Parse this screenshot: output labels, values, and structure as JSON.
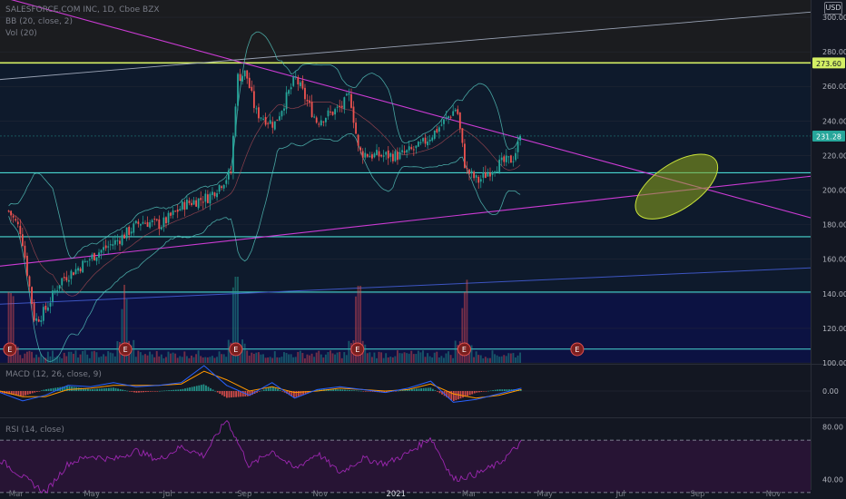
{
  "header": {
    "title": "SALESFORCE.COM INC, 1D, Cboe BZX",
    "bb_label": "BB (20, close, 2)",
    "vol_label": "Vol (20)",
    "currency": "USD"
  },
  "panes": {
    "macd_label": "MACD (12, 26, close, 9)",
    "rsi_label": "RSI (14, close)"
  },
  "price_labels": {
    "resistance": "273.60",
    "last": "231.28"
  },
  "colors": {
    "background": "#131722",
    "up": "#26a69a",
    "down": "#ef5350",
    "trendline": "#cc3bd4",
    "support": "#48d6d0",
    "resistance": "#d4ef64",
    "ellipse": "#8fa81c",
    "macd": "#2962ff",
    "signal": "#ff9800",
    "rsi": "#9c27b0"
  },
  "chart_data": [
    {
      "type": "candlestick",
      "title": "SALESFORCE.COM INC, 1D, Cboe BZX",
      "ylim": [
        100,
        310
      ],
      "yticks": [
        100,
        120,
        140,
        160,
        180,
        200,
        220,
        240,
        260,
        280,
        300
      ],
      "xticks": [
        "Mar",
        "May",
        "Jul",
        "Sep",
        "Nov",
        "2021",
        "Mar",
        "May",
        "Jul",
        "Sep",
        "Nov"
      ],
      "close_path": [
        {
          "x": "2020-02-24",
          "y": 188
        },
        {
          "x": "2020-03-05",
          "y": 176
        },
        {
          "x": "2020-03-16",
          "y": 124
        },
        {
          "x": "2020-03-24",
          "y": 130
        },
        {
          "x": "2020-04-06",
          "y": 148
        },
        {
          "x": "2020-04-20",
          "y": 155
        },
        {
          "x": "2020-05-06",
          "y": 164
        },
        {
          "x": "2020-05-20",
          "y": 170
        },
        {
          "x": "2020-06-10",
          "y": 182
        },
        {
          "x": "2020-06-26",
          "y": 180
        },
        {
          "x": "2020-07-15",
          "y": 192
        },
        {
          "x": "2020-08-03",
          "y": 196
        },
        {
          "x": "2020-08-21",
          "y": 210
        },
        {
          "x": "2020-08-26",
          "y": 265
        },
        {
          "x": "2020-09-02",
          "y": 268
        },
        {
          "x": "2020-09-10",
          "y": 245
        },
        {
          "x": "2020-09-25",
          "y": 238
        },
        {
          "x": "2020-10-12",
          "y": 265
        },
        {
          "x": "2020-10-29",
          "y": 240
        },
        {
          "x": "2020-11-18",
          "y": 248
        },
        {
          "x": "2020-11-25",
          "y": 255
        },
        {
          "x": "2020-12-02",
          "y": 222
        },
        {
          "x": "2020-12-14",
          "y": 220
        },
        {
          "x": "2021-01-04",
          "y": 220
        },
        {
          "x": "2021-01-20",
          "y": 225
        },
        {
          "x": "2021-02-03",
          "y": 235
        },
        {
          "x": "2021-02-19",
          "y": 248
        },
        {
          "x": "2021-02-26",
          "y": 212
        },
        {
          "x": "2021-03-08",
          "y": 205
        },
        {
          "x": "2021-03-22",
          "y": 214
        },
        {
          "x": "2021-04-05",
          "y": 218
        },
        {
          "x": "2021-04-12",
          "y": 231.28
        }
      ],
      "earnings_markers": [
        "2020-02-25",
        "2020-05-28",
        "2020-08-25",
        "2020-12-01",
        "2021-02-25",
        "2021-05-27"
      ],
      "marker_label": "E",
      "horizontal_levels": [
        {
          "value": 273.6,
          "kind": "resistance"
        },
        {
          "value": 210,
          "kind": "support"
        },
        {
          "value": 173,
          "kind": "support"
        },
        {
          "value": 141,
          "kind": "support"
        },
        {
          "value": 108,
          "kind": "support"
        }
      ],
      "trendlines": [
        {
          "kind": "descending",
          "from": {
            "x": "2020-02-17",
            "y": 312
          },
          "to": {
            "x": "2021-12-01",
            "y": 184
          }
        },
        {
          "kind": "ascending",
          "from": {
            "x": "2020-02-17",
            "y": 156
          },
          "to": {
            "x": "2021-12-01",
            "y": 208
          }
        },
        {
          "kind": "channel-upper",
          "from": {
            "x": "2020-02-17",
            "y": 264
          },
          "to": {
            "x": "2021-12-01",
            "y": 303
          }
        },
        {
          "kind": "channel-lower",
          "from": {
            "x": "2020-02-17",
            "y": 134
          },
          "to": {
            "x": "2021-12-01",
            "y": 155
          }
        }
      ],
      "highlight_zone": {
        "center": {
          "x": "2021-08-15",
          "y": 202
        },
        "shape": "ellipse"
      }
    },
    {
      "type": "line",
      "title": "MACD (12, 26, close, 9)",
      "ylim": [
        -18,
        18
      ],
      "yticks": [
        0
      ],
      "series": [
        {
          "name": "MACD",
          "values": [
            -1,
            -7,
            -3,
            4,
            3,
            6,
            3,
            4,
            6,
            18,
            4,
            -3,
            6,
            -5,
            1,
            3,
            1,
            -1,
            2,
            7,
            -8,
            -6,
            -2,
            2
          ]
        },
        {
          "name": "Signal",
          "values": [
            0,
            -4,
            -4,
            1,
            2,
            4,
            4,
            4,
            5,
            14,
            8,
            0,
            3,
            -1,
            0,
            2,
            1,
            0,
            1,
            5,
            -2,
            -5,
            -3,
            1
          ]
        }
      ]
    },
    {
      "type": "line",
      "title": "RSI (14, close)",
      "ylim": [
        32,
        86
      ],
      "yticks": [
        40,
        80
      ],
      "bands": [
        70,
        30
      ],
      "series": [
        {
          "name": "RSI",
          "values": [
            55,
            42,
            30,
            52,
            58,
            55,
            62,
            55,
            65,
            58,
            86,
            50,
            62,
            48,
            60,
            45,
            56,
            52,
            60,
            72,
            40,
            44,
            52,
            68
          ]
        }
      ]
    }
  ]
}
